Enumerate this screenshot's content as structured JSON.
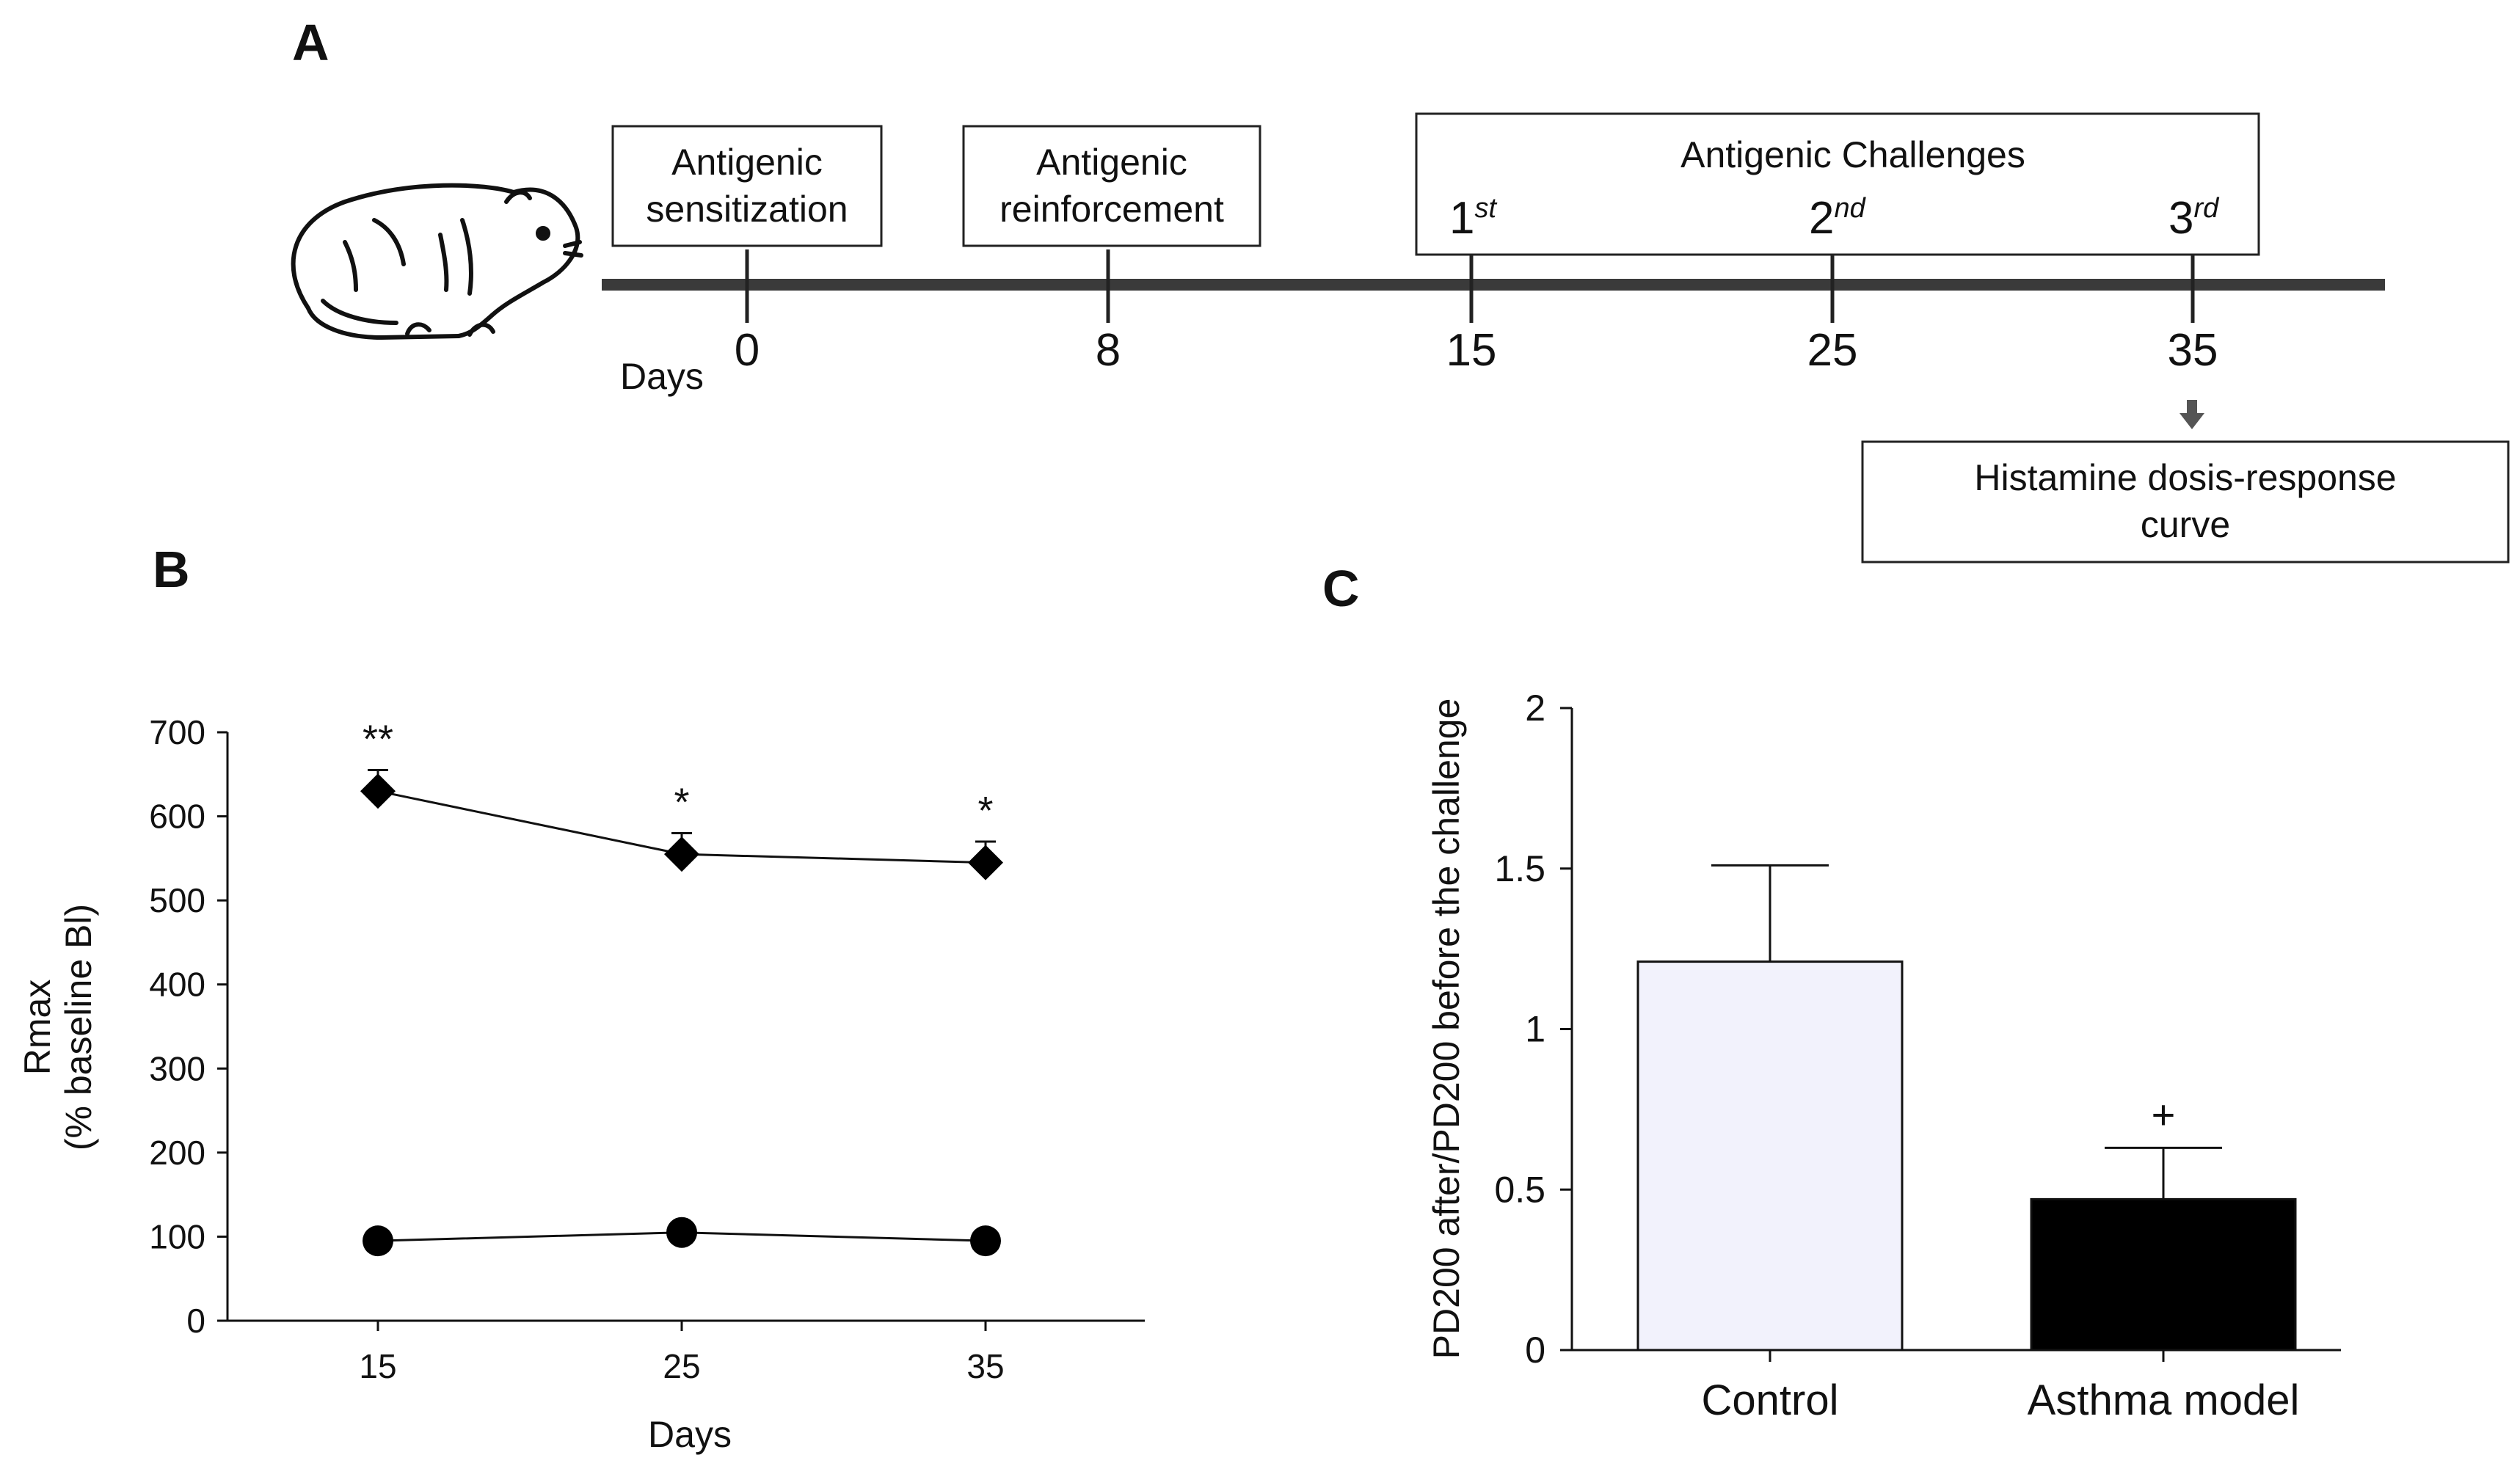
{
  "panels": {
    "a": "A",
    "b": "B",
    "c": "C"
  },
  "timeline": {
    "days_label": "Days",
    "ticks": [
      {
        "day": "0",
        "box": [
          "Antigenic",
          "sensitization"
        ],
        "ordinal": ""
      },
      {
        "day": "8",
        "box": [
          "Antigenic",
          "reinforcement"
        ],
        "ordinal": ""
      },
      {
        "day": "15",
        "ordinal_num": "1",
        "ordinal_sup": "st"
      },
      {
        "day": "25",
        "ordinal_num": "2",
        "ordinal_sup": "nd"
      },
      {
        "day": "35",
        "ordinal_num": "3",
        "ordinal_sup": "rd"
      }
    ],
    "challenges_title": "Antigenic Challenges",
    "histamine_box": [
      "Histamine dosis-response",
      "curve"
    ]
  },
  "chart_data": [
    {
      "type": "line",
      "panel": "B",
      "x": [
        15,
        25,
        35
      ],
      "xlabel": "Days",
      "ylabel": "Rmax",
      "ylabel2": "(% baseline Bl)",
      "ylim": [
        0,
        700
      ],
      "yticks": [
        0,
        100,
        200,
        300,
        400,
        500,
        600,
        700
      ],
      "series": [
        {
          "marker": "diamond",
          "values": [
            630,
            555,
            545
          ],
          "errors": [
            25,
            25,
            25
          ],
          "annotations": [
            "**",
            "*",
            "*"
          ]
        },
        {
          "marker": "circle",
          "values": [
            95,
            105,
            95
          ],
          "errors": [
            0,
            0,
            0
          ],
          "annotations": [
            "",
            "",
            ""
          ]
        }
      ]
    },
    {
      "type": "bar",
      "panel": "C",
      "categories": [
        "Control",
        "Asthma model"
      ],
      "values": [
        1.21,
        0.47
      ],
      "errors": [
        0.3,
        0.16
      ],
      "colors": [
        "#f2f2fc",
        "#000000"
      ],
      "annotations": [
        "",
        "+"
      ],
      "ylabel": "PD200 after/PD200 before the challenge",
      "ylim": [
        0,
        2
      ],
      "yticks": [
        "0",
        "0.5",
        "1",
        "1.5",
        "2"
      ]
    }
  ]
}
